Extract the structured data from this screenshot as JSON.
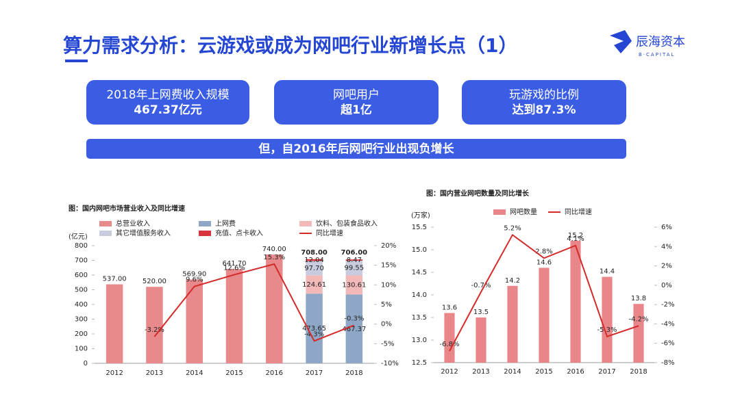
{
  "header": {
    "title": "算力需求分析：云游戏或成为网吧行业新增长点（1）"
  },
  "logo": {
    "name": "辰海资本",
    "sub": "B·CAPITAL"
  },
  "highlights": [
    {
      "label": "2018年上网费收入规模",
      "value": "467.37亿元"
    },
    {
      "label": "网吧用户",
      "value": "超1亿"
    },
    {
      "label": "玩游戏的比例",
      "value": "达到87.3%"
    }
  ],
  "banner": "但，自2016年后网吧行业出现负增长",
  "chart_data": [
    {
      "type": "bar",
      "stacked": true,
      "title": "图：国内网吧市场营业收入及同比增速",
      "ylabel": "(亿元)",
      "categories": [
        "2012",
        "2013",
        "2014",
        "2015",
        "2016",
        "2017",
        "2018"
      ],
      "ylim": [
        0,
        800
      ],
      "yticks": [
        0,
        100,
        200,
        300,
        400,
        500,
        600,
        700,
        800
      ],
      "y2lim": [
        -10,
        20
      ],
      "y2ticks": [
        {
          "value": -10,
          "label": "-10%"
        },
        {
          "value": -5,
          "label": "-5%"
        },
        {
          "value": 0,
          "label": "0%"
        },
        {
          "value": 5,
          "label": "5%"
        },
        {
          "value": 10,
          "label": "10%"
        },
        {
          "value": 15,
          "label": "15%"
        },
        {
          "value": 20,
          "label": "20%"
        }
      ],
      "series": [
        {
          "name": "总营业收入",
          "color": "#e8898b",
          "values": [
            537,
            520,
            569.9,
            641.7,
            740,
            null,
            null
          ],
          "value_labels": [
            "537.00",
            "520.00",
            "569.90",
            "641.70",
            "740.00",
            null,
            null
          ]
        },
        {
          "name": "上网费",
          "color": "#8ea7c6",
          "values": [
            null,
            null,
            null,
            null,
            null,
            473.65,
            467.37
          ],
          "value_labels": [
            null,
            null,
            null,
            null,
            null,
            "473.65",
            "467.37"
          ]
        },
        {
          "name": "饮料、包装食品收入",
          "color": "#f3b9b9",
          "values": [
            null,
            null,
            null,
            null,
            null,
            124.61,
            130.61
          ],
          "value_labels": [
            null,
            null,
            null,
            null,
            null,
            "124.61",
            "130.61"
          ]
        },
        {
          "name": "其它增值服务收入",
          "color": "#c8ccde",
          "values": [
            null,
            null,
            null,
            null,
            null,
            97.7,
            99.55
          ],
          "value_labels": [
            null,
            null,
            null,
            null,
            null,
            "97.70",
            "99.55"
          ]
        },
        {
          "name": "充值、点卡收入",
          "color": "#d8333d",
          "values": [
            null,
            null,
            null,
            null,
            null,
            12.04,
            8.47
          ],
          "value_labels": [
            null,
            null,
            null,
            null,
            null,
            "12.04",
            "8.47"
          ]
        },
        {
          "name": "同比增速",
          "type": "line",
          "axis": "y2",
          "color": "#d42a2a",
          "values": [
            null,
            -3.2,
            9.6,
            12.6,
            15.3,
            -4.3,
            -0.3
          ],
          "value_labels": [
            null,
            "-3.2%",
            "9.6%",
            "12.6%",
            "15.3%",
            "-4.3%",
            "-0.3%"
          ]
        }
      ],
      "totals": [
        null,
        null,
        null,
        null,
        null,
        708,
        706
      ],
      "total_labels": [
        null,
        null,
        null,
        null,
        null,
        "708.00",
        "706.00"
      ]
    },
    {
      "type": "bar",
      "title": "图：国内营业网吧数量及同比增长",
      "ylabel": "(万家)",
      "categories": [
        "2012",
        "2013",
        "2014",
        "2015",
        "2016",
        "2017",
        "2018"
      ],
      "ylim": [
        12.5,
        15.5
      ],
      "yticks": [
        12.5,
        {
          "value": 13,
          "label": "13.0"
        },
        13.5,
        {
          "value": 14,
          "label": "14.0"
        },
        14.5,
        {
          "value": 15,
          "label": "15.0"
        },
        15.5
      ],
      "y2lim": [
        -8,
        6
      ],
      "y2ticks": [
        {
          "value": -8,
          "label": "-8%"
        },
        {
          "value": -6,
          "label": "-6%"
        },
        {
          "value": -4,
          "label": "-4%"
        },
        {
          "value": -2,
          "label": "-2%"
        },
        {
          "value": 0,
          "label": "0%"
        },
        {
          "value": 2,
          "label": "2%"
        },
        {
          "value": 4,
          "label": "4%"
        },
        {
          "value": 6,
          "label": "6%"
        }
      ],
      "series": [
        {
          "name": "网吧数量",
          "color": "#e8868a",
          "values": [
            13.6,
            13.5,
            14.2,
            14.6,
            15.2,
            14.4,
            13.8
          ]
        },
        {
          "name": "同比增速",
          "type": "line",
          "axis": "y2",
          "color": "#d42a2a",
          "values": [
            -6.8,
            -0.7,
            5.2,
            2.8,
            4.1,
            -5.3,
            -4.2
          ],
          "value_labels": [
            "-6.8%",
            "-0.7%",
            "5.2%",
            "2.8%",
            "4.1%",
            "-5.3%",
            "-4.2%"
          ]
        }
      ]
    }
  ]
}
